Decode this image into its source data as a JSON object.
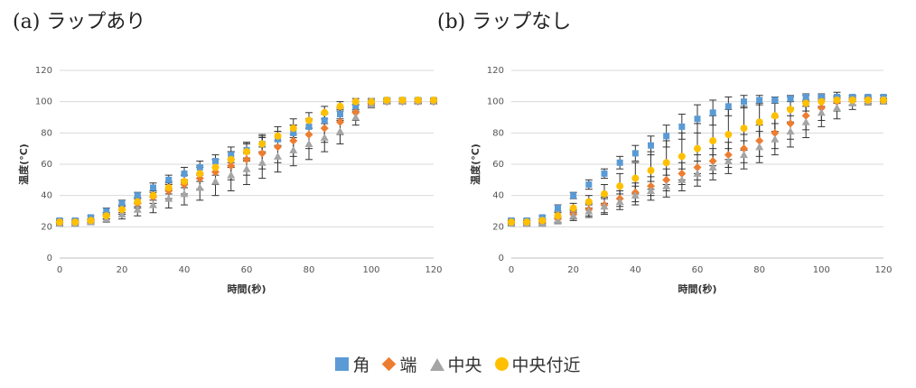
{
  "panels": {
    "a": {
      "title": "(a) ラップあり"
    },
    "b": {
      "title": "(b) ラップなし"
    }
  },
  "legend": {
    "kaku": "角",
    "hashi": "端",
    "chuou": "中央",
    "chuoufukin": "中央付近"
  },
  "colors": {
    "kaku": "#5b9bd5",
    "hashi": "#ed7d31",
    "chuou": "#a5a5a5",
    "chuoufukin": "#ffc000"
  },
  "chart_data": [
    {
      "type": "scatter",
      "title": "(a) ラップあり",
      "xlabel": "時間(秒)",
      "ylabel": "温度(°C)",
      "xlim": [
        0,
        120
      ],
      "ylim": [
        0,
        120
      ],
      "xticks": [
        0,
        20,
        40,
        60,
        80,
        100,
        120
      ],
      "yticks": [
        0,
        20,
        40,
        60,
        80,
        100,
        120
      ],
      "grid": "horizontal",
      "x": [
        0,
        5,
        10,
        15,
        20,
        25,
        30,
        35,
        40,
        45,
        50,
        55,
        60,
        65,
        70,
        75,
        80,
        85,
        90,
        95,
        100,
        105,
        110,
        115,
        120
      ],
      "series": [
        {
          "name": "角",
          "marker": "square",
          "values": [
            24,
            24,
            26,
            30,
            35,
            40,
            45,
            50,
            54,
            58,
            62,
            66,
            69,
            73,
            76,
            80,
            84,
            88,
            92,
            97,
            100,
            101,
            101,
            101,
            101
          ],
          "error": [
            1,
            1,
            1,
            2,
            2,
            2,
            3,
            3,
            4,
            4,
            4,
            5,
            5,
            5,
            5,
            5,
            5,
            5,
            4,
            3,
            2,
            1,
            1,
            1,
            1
          ]
        },
        {
          "name": "端",
          "marker": "diamond",
          "values": [
            23,
            23,
            24,
            27,
            31,
            35,
            39,
            43,
            47,
            51,
            55,
            59,
            63,
            67,
            71,
            75,
            79,
            83,
            87,
            93,
            99,
            100,
            100,
            100,
            100
          ],
          "error": [
            1,
            1,
            1,
            2,
            3,
            3,
            4,
            5,
            6,
            7,
            8,
            9,
            10,
            10,
            10,
            10,
            9,
            9,
            8,
            5,
            2,
            1,
            1,
            1,
            1
          ]
        },
        {
          "name": "中央",
          "marker": "triangle",
          "values": [
            22,
            22,
            23,
            25,
            28,
            31,
            34,
            38,
            41,
            45,
            49,
            53,
            57,
            61,
            65,
            69,
            73,
            77,
            81,
            90,
            98,
            100,
            100,
            100,
            100
          ],
          "error": [
            1,
            1,
            1,
            2,
            3,
            4,
            5,
            6,
            7,
            8,
            9,
            10,
            10,
            10,
            10,
            10,
            10,
            9,
            8,
            5,
            2,
            1,
            1,
            1,
            1
          ]
        },
        {
          "name": "中央付近",
          "marker": "circle",
          "values": [
            23,
            23,
            24,
            27,
            31,
            36,
            40,
            45,
            49,
            54,
            58,
            63,
            68,
            73,
            78,
            83,
            88,
            93,
            97,
            100,
            100,
            101,
            101,
            101,
            101
          ],
          "error": [
            1,
            1,
            1,
            2,
            2,
            3,
            3,
            4,
            4,
            5,
            5,
            5,
            6,
            6,
            6,
            6,
            5,
            4,
            3,
            2,
            1,
            1,
            1,
            1,
            1
          ]
        }
      ]
    },
    {
      "type": "scatter",
      "title": "(b) ラップなし",
      "xlabel": "時間(秒)",
      "ylabel": "温度(°C)",
      "xlim": [
        0,
        120
      ],
      "ylim": [
        0,
        120
      ],
      "xticks": [
        0,
        20,
        40,
        60,
        80,
        100,
        120
      ],
      "yticks": [
        0,
        20,
        40,
        60,
        80,
        100,
        120
      ],
      "grid": "horizontal",
      "x": [
        0,
        5,
        10,
        15,
        20,
        25,
        30,
        35,
        40,
        45,
        50,
        55,
        60,
        65,
        70,
        75,
        80,
        85,
        90,
        95,
        100,
        105,
        110,
        115,
        120
      ],
      "series": [
        {
          "name": "角",
          "marker": "square",
          "values": [
            24,
            24,
            26,
            32,
            40,
            47,
            54,
            61,
            67,
            72,
            78,
            84,
            89,
            93,
            97,
            100,
            101,
            101,
            102,
            103,
            103,
            103,
            103,
            103,
            103
          ],
          "error": [
            1,
            1,
            1,
            2,
            2,
            3,
            3,
            4,
            5,
            6,
            7,
            8,
            9,
            8,
            6,
            4,
            3,
            2,
            2,
            2,
            2,
            1,
            1,
            1,
            1
          ]
        },
        {
          "name": "端",
          "marker": "diamond",
          "values": [
            23,
            23,
            23,
            25,
            28,
            31,
            34,
            38,
            42,
            46,
            50,
            54,
            58,
            62,
            66,
            70,
            75,
            80,
            86,
            91,
            96,
            100,
            101,
            101,
            101
          ],
          "error": [
            1,
            1,
            1,
            2,
            3,
            4,
            5,
            5,
            6,
            6,
            7,
            7,
            8,
            8,
            8,
            9,
            10,
            10,
            10,
            9,
            8,
            6,
            3,
            2,
            1
          ]
        },
        {
          "name": "中央",
          "marker": "triangle",
          "values": [
            22,
            22,
            22,
            24,
            27,
            30,
            33,
            36,
            40,
            43,
            46,
            50,
            54,
            58,
            62,
            66,
            71,
            76,
            81,
            87,
            93,
            96,
            99,
            100,
            100
          ],
          "error": [
            1,
            1,
            1,
            2,
            3,
            4,
            5,
            5,
            6,
            6,
            7,
            7,
            8,
            8,
            8,
            9,
            10,
            10,
            10,
            10,
            9,
            7,
            4,
            2,
            1
          ]
        },
        {
          "name": "中央付近",
          "marker": "circle",
          "values": [
            23,
            23,
            24,
            27,
            32,
            36,
            41,
            46,
            51,
            56,
            61,
            65,
            70,
            75,
            79,
            83,
            87,
            91,
            95,
            99,
            100,
            101,
            101,
            101,
            101
          ],
          "error": [
            1,
            1,
            1,
            2,
            3,
            4,
            6,
            8,
            10,
            12,
            14,
            15,
            16,
            16,
            16,
            14,
            12,
            10,
            8,
            5,
            3,
            2,
            1,
            1,
            1
          ]
        }
      ]
    }
  ]
}
